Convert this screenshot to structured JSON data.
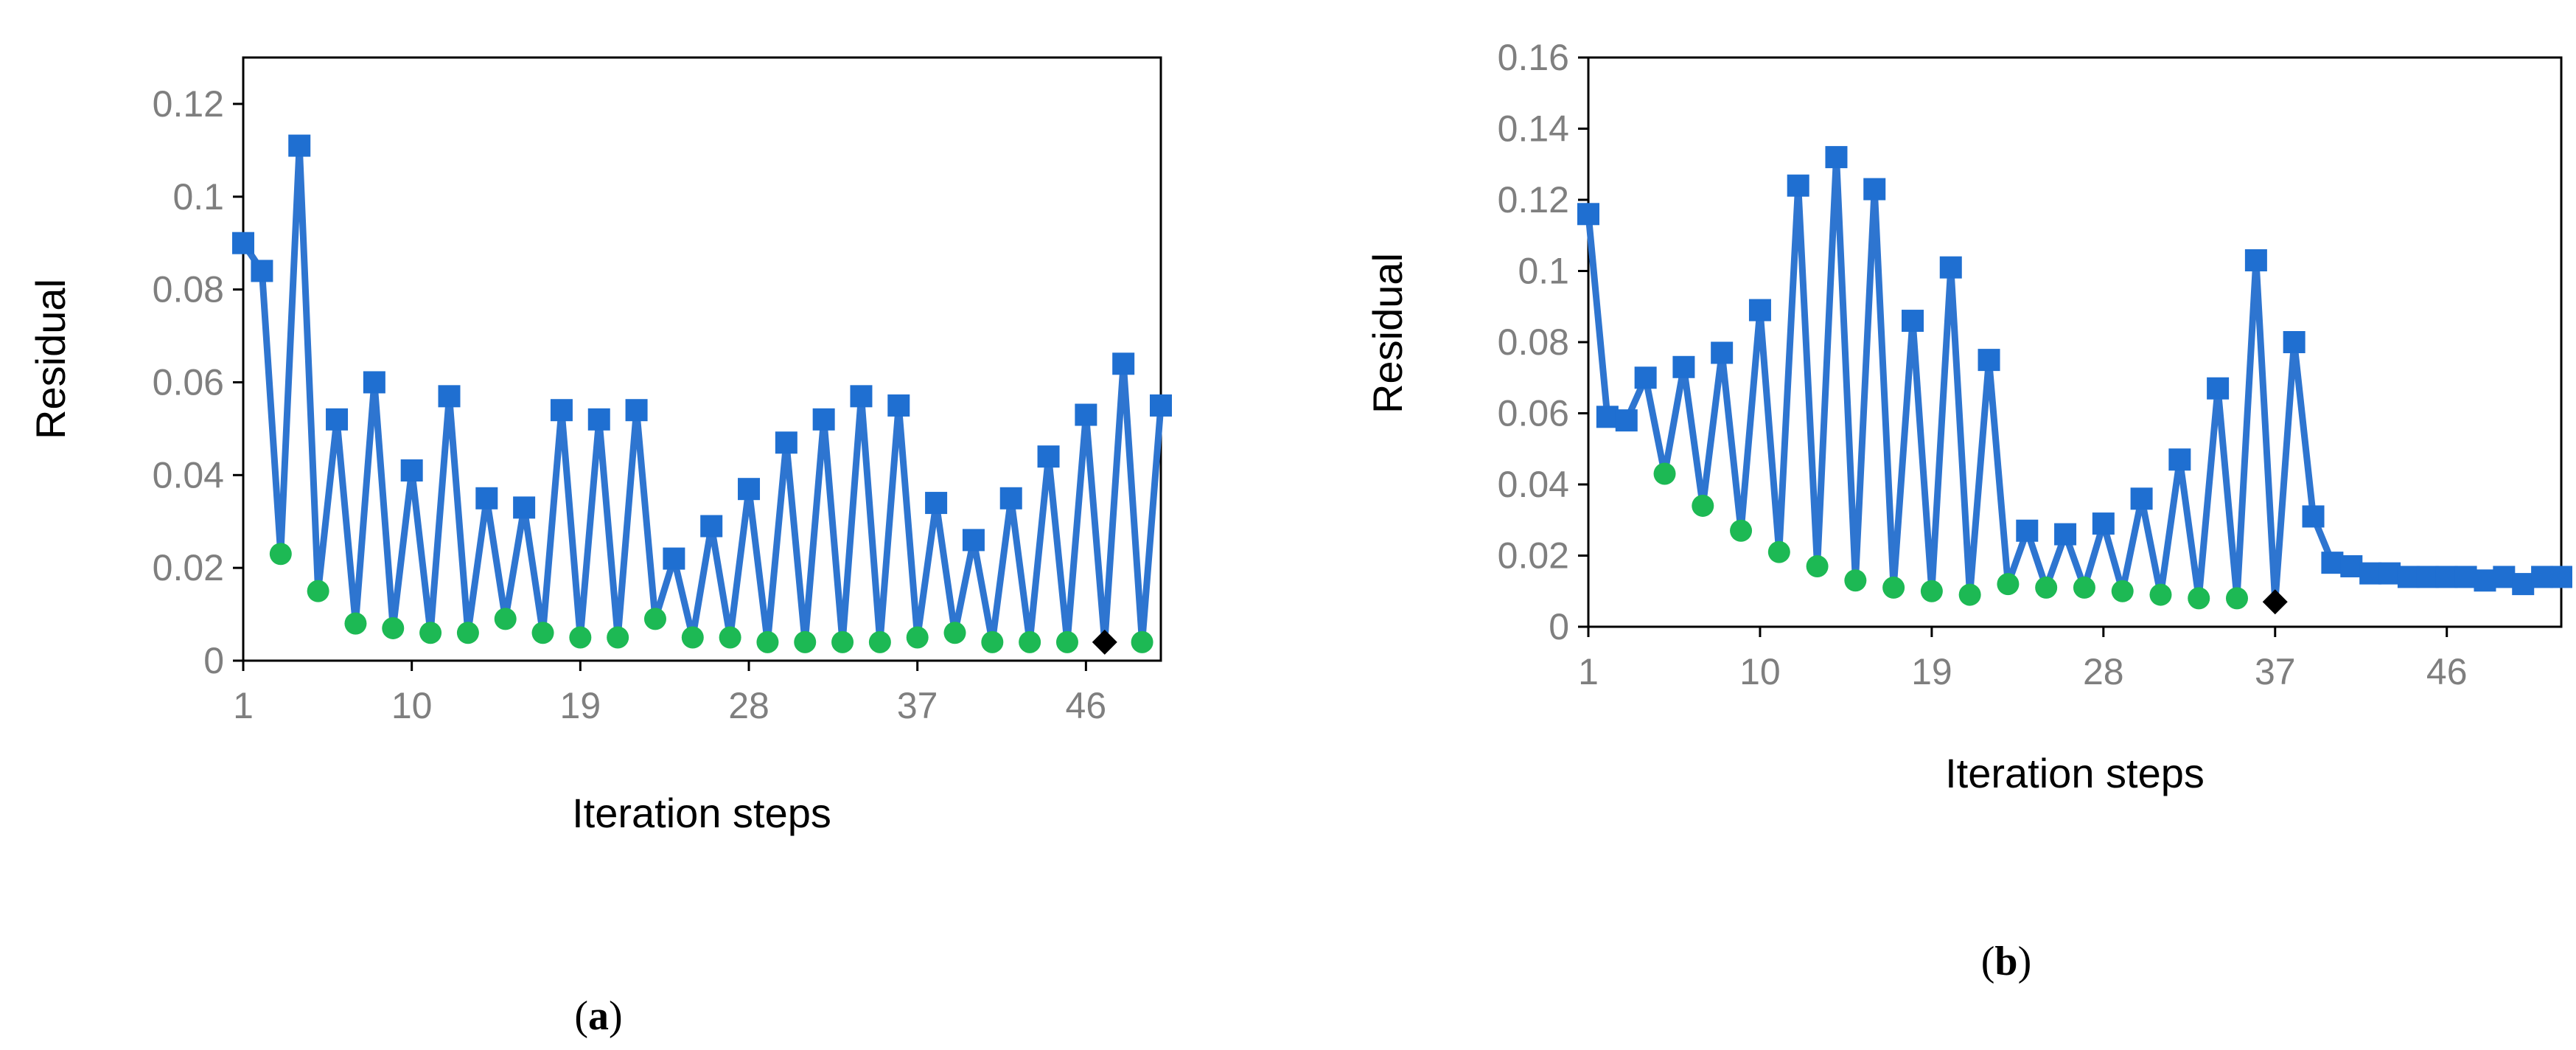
{
  "chart_data": [
    {
      "panel": "a",
      "type": "line",
      "xlabel": "Iteration steps",
      "ylabel": "Residual",
      "xlim": [
        1,
        50
      ],
      "ylim": [
        0,
        0.13
      ],
      "xticks": [
        1,
        10,
        19,
        28,
        37,
        46
      ],
      "yticks": [
        0,
        0.02,
        0.04,
        0.06,
        0.08,
        0.1,
        0.12
      ],
      "ytick_labels": [
        "0",
        "0.02",
        "0.04",
        "0.06",
        "0.08",
        "0.1",
        "0.12"
      ],
      "x": [
        1,
        2,
        3,
        4,
        5,
        6,
        7,
        8,
        9,
        10,
        11,
        12,
        13,
        14,
        15,
        16,
        17,
        18,
        19,
        20,
        21,
        22,
        23,
        24,
        25,
        26,
        27,
        28,
        29,
        30,
        31,
        32,
        33,
        34,
        35,
        36,
        37,
        38,
        39,
        40,
        41,
        42,
        43,
        44,
        45,
        46,
        47,
        48,
        49,
        50
      ],
      "y": [
        0.09,
        0.084,
        0.023,
        0.111,
        0.015,
        0.052,
        0.008,
        0.06,
        0.007,
        0.041,
        0.006,
        0.057,
        0.006,
        0.035,
        0.009,
        0.033,
        0.006,
        0.054,
        0.005,
        0.052,
        0.005,
        0.054,
        0.009,
        0.022,
        0.005,
        0.029,
        0.005,
        0.037,
        0.004,
        0.047,
        0.004,
        0.052,
        0.004,
        0.057,
        0.004,
        0.055,
        0.005,
        0.034,
        0.006,
        0.026,
        0.004,
        0.035,
        0.004,
        0.044,
        0.004,
        0.053,
        0.004,
        0.064,
        0.004,
        0.055
      ],
      "marker_types": [
        "square",
        "square",
        "circle",
        "square",
        "circle",
        "square",
        "circle",
        "square",
        "circle",
        "square",
        "circle",
        "square",
        "circle",
        "square",
        "circle",
        "square",
        "circle",
        "square",
        "circle",
        "square",
        "circle",
        "square",
        "circle",
        "square",
        "circle",
        "square",
        "circle",
        "square",
        "circle",
        "square",
        "circle",
        "square",
        "circle",
        "square",
        "circle",
        "square",
        "circle",
        "square",
        "circle",
        "square",
        "circle",
        "square",
        "circle",
        "square",
        "circle",
        "square",
        "diamond",
        "square",
        "circle",
        "square"
      ],
      "line_color": "#2e75d0",
      "colors": {
        "square": "#1f6fd1",
        "circle": "#1db954",
        "diamond": "#000000"
      }
    },
    {
      "panel": "b",
      "type": "line",
      "xlabel": "Iteration steps",
      "ylabel": "Residual",
      "xlim": [
        1,
        52
      ],
      "ylim": [
        0,
        0.16
      ],
      "xticks": [
        1,
        10,
        19,
        28,
        37,
        46
      ],
      "yticks": [
        0,
        0.02,
        0.04,
        0.06,
        0.08,
        0.1,
        0.12,
        0.14,
        0.16
      ],
      "ytick_labels": [
        "0",
        "0.02",
        "0.04",
        "0.06",
        "0.08",
        "0.1",
        "0.12",
        "0.14",
        "0.16"
      ],
      "x": [
        1,
        2,
        3,
        4,
        5,
        6,
        7,
        8,
        9,
        10,
        11,
        12,
        13,
        14,
        15,
        16,
        17,
        18,
        19,
        20,
        21,
        22,
        23,
        24,
        25,
        26,
        27,
        28,
        29,
        30,
        31,
        32,
        33,
        34,
        35,
        36,
        37,
        38,
        39,
        40,
        41,
        42,
        43,
        44,
        45,
        46,
        47,
        48,
        49,
        50,
        51,
        52
      ],
      "y": [
        0.116,
        0.059,
        0.058,
        0.07,
        0.043,
        0.073,
        0.034,
        0.077,
        0.027,
        0.089,
        0.021,
        0.124,
        0.017,
        0.132,
        0.013,
        0.123,
        0.011,
        0.086,
        0.01,
        0.101,
        0.009,
        0.075,
        0.012,
        0.027,
        0.011,
        0.026,
        0.011,
        0.029,
        0.01,
        0.036,
        0.009,
        0.047,
        0.008,
        0.067,
        0.008,
        0.103,
        0.007,
        0.08,
        0.031,
        0.018,
        0.017,
        0.015,
        0.015,
        0.014,
        0.014,
        0.014,
        0.014,
        0.013,
        0.014,
        0.012,
        0.014,
        0.014
      ],
      "marker_types": [
        "square",
        "square",
        "square",
        "square",
        "circle",
        "square",
        "circle",
        "square",
        "circle",
        "square",
        "circle",
        "square",
        "circle",
        "square",
        "circle",
        "square",
        "circle",
        "square",
        "circle",
        "square",
        "circle",
        "square",
        "circle",
        "square",
        "circle",
        "square",
        "circle",
        "square",
        "circle",
        "square",
        "circle",
        "square",
        "circle",
        "square",
        "circle",
        "square",
        "diamond",
        "square",
        "square",
        "square",
        "square",
        "square",
        "square",
        "square",
        "square",
        "square",
        "square",
        "square",
        "square",
        "square",
        "square",
        "square"
      ],
      "line_color": "#2e75d0",
      "colors": {
        "square": "#1f6fd1",
        "circle": "#1db954",
        "diamond": "#000000"
      }
    }
  ],
  "labels": {
    "a": [
      "(",
      "a",
      ")"
    ],
    "b": [
      "(",
      "b",
      ")"
    ]
  }
}
